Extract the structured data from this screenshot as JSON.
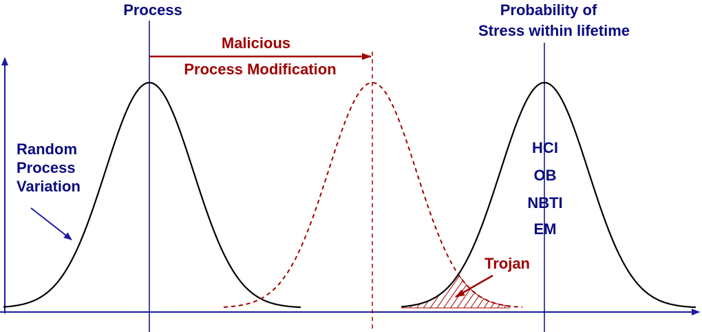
{
  "labels": {
    "process": "Process",
    "modification": [
      "Malicious",
      "Process Modification"
    ],
    "stress": [
      "Probability of",
      "Stress within lifetime"
    ],
    "mechanisms": [
      "HCI",
      "OB",
      "NBTI",
      "EM"
    ],
    "random_variation": [
      "Random",
      "Process",
      "Variation"
    ],
    "trojan": "Trojan"
  }
}
